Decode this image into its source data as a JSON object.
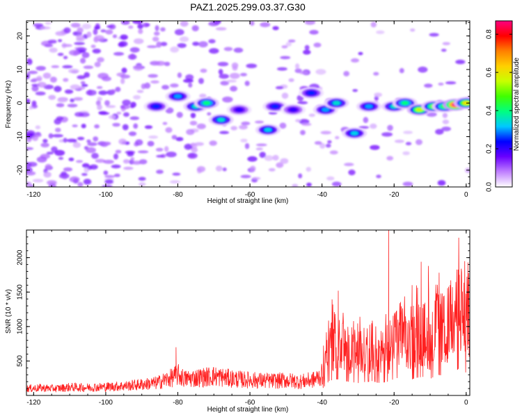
{
  "chart_data": [
    {
      "type": "heatmap",
      "title": "PAZ1.2025.299.03.37.G30",
      "xlabel": "Height of straight line (km)",
      "ylabel": "Frequency (Hz)",
      "xlim": [
        -122,
        1
      ],
      "ylim": [
        -25,
        24.5
      ],
      "xticks": [
        -120,
        -100,
        -80,
        -60,
        -40,
        -20,
        0
      ],
      "yticks": [
        -20,
        -10,
        0,
        10,
        20
      ],
      "colorbar": {
        "label": "Normalized spectral amplitude",
        "range": [
          0,
          0.87
        ],
        "ticks": [
          0.0,
          0.2,
          0.4,
          0.6,
          0.8
        ],
        "tick_labels": [
          "0.0",
          "0.2",
          "0.4",
          "0.6",
          "0.8"
        ],
        "stops": [
          "#ffffff",
          "#c080ff",
          "#6a00ff",
          "#0000ff",
          "#00c8ff",
          "#00ff80",
          "#40ff00",
          "#c8ff00",
          "#ffd000",
          "#ff8000",
          "#ff0000",
          "#ff0080"
        ]
      },
      "blobs": [
        {
          "x": -86,
          "y": -1,
          "amp": 0.25
        },
        {
          "x": -80,
          "y": 2,
          "amp": 0.3
        },
        {
          "x": -75,
          "y": -1,
          "amp": 0.35
        },
        {
          "x": -72,
          "y": 0,
          "amp": 0.4
        },
        {
          "x": -68,
          "y": -5,
          "amp": 0.35
        },
        {
          "x": -63,
          "y": -2,
          "amp": 0.2
        },
        {
          "x": -55,
          "y": -8,
          "amp": 0.33
        },
        {
          "x": -53,
          "y": -1,
          "amp": 0.25
        },
        {
          "x": -48,
          "y": -2,
          "amp": 0.2
        },
        {
          "x": -43,
          "y": 3,
          "amp": 0.25
        },
        {
          "x": -39,
          "y": -2,
          "amp": 0.3
        },
        {
          "x": -36,
          "y": 0,
          "amp": 0.35
        },
        {
          "x": -31,
          "y": -9,
          "amp": 0.33
        },
        {
          "x": -27,
          "y": -1,
          "amp": 0.3
        },
        {
          "x": -20,
          "y": -1,
          "amp": 0.35
        },
        {
          "x": -17,
          "y": 0,
          "amp": 0.4
        },
        {
          "x": -13,
          "y": -2,
          "amp": 0.55
        },
        {
          "x": -9,
          "y": -1,
          "amp": 0.5
        },
        {
          "x": -6,
          "y": -1,
          "amp": 0.45
        },
        {
          "x": -3,
          "y": -0.5,
          "amp": 0.87
        },
        {
          "x": 0,
          "y": 0,
          "amp": 0.6
        }
      ]
    },
    {
      "type": "line",
      "xlabel": "Height of straight line (km)",
      "ylabel": "SNR (10 * v/v)",
      "xlim": [
        -122,
        1
      ],
      "ylim": [
        0,
        2400
      ],
      "xticks": [
        -120,
        -100,
        -80,
        -60,
        -40,
        -20,
        0
      ],
      "yticks": [
        500,
        1000,
        1500,
        2000
      ],
      "series": [
        {
          "name": "SNR",
          "color": "#ff2020",
          "x": [
            -122,
            -118,
            -114,
            -110,
            -106,
            -102,
            -98,
            -94,
            -90,
            -86,
            -82,
            -80,
            -78,
            -74,
            -70,
            -66,
            -62,
            -58,
            -54,
            -50,
            -46,
            -42,
            -40,
            -38,
            -36,
            -34,
            -32,
            -30,
            -28,
            -26,
            -24,
            -22,
            -20,
            -18,
            -16,
            -14,
            -12,
            -10,
            -8,
            -6,
            -4,
            -2,
            0,
            1
          ],
          "values": [
            100,
            110,
            100,
            120,
            115,
            120,
            130,
            140,
            160,
            180,
            250,
            300,
            240,
            260,
            280,
            250,
            230,
            220,
            210,
            220,
            200,
            230,
            300,
            700,
            800,
            700,
            650,
            600,
            650,
            700,
            600,
            650,
            800,
            900,
            700,
            850,
            900,
            800,
            1000,
            950,
            1100,
            1300,
            1100,
            1200
          ],
          "peaks": [
            {
              "x": -80.5,
              "y": 700
            },
            {
              "x": -37,
              "y": 1320
            },
            {
              "x": -35.5,
              "y": 1520
            },
            {
              "x": -21.5,
              "y": 2420
            },
            {
              "x": -15,
              "y": 1600
            },
            {
              "x": -12.5,
              "y": 1940
            },
            {
              "x": -10.5,
              "y": 1880
            },
            {
              "x": -2,
              "y": 1600
            }
          ]
        }
      ]
    }
  ]
}
